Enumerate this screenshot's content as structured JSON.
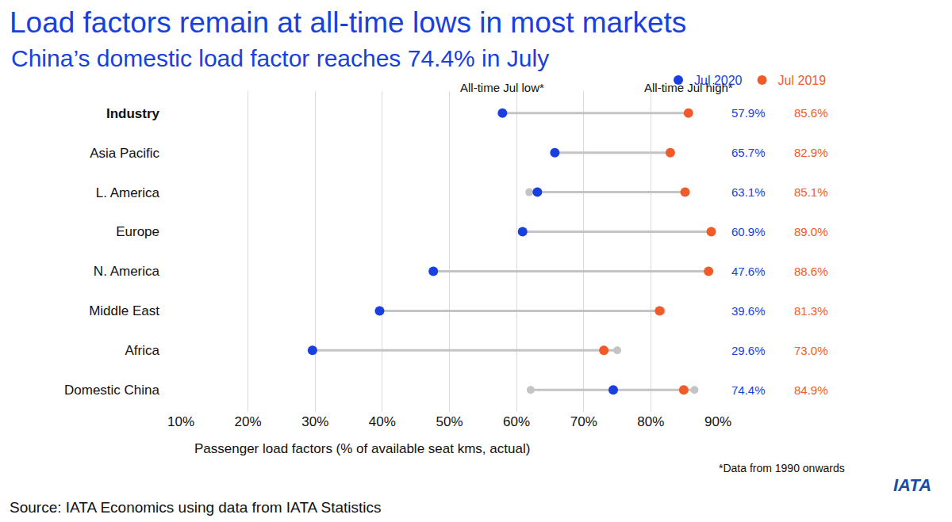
{
  "chart_data": {
    "type": "dumbbell",
    "title": "Load factors remain at all-time lows in most markets",
    "subtitle": "China’s domestic load factor reaches 74.4% in July",
    "orientation": "horizontal",
    "categories": [
      "Industry",
      "Asia Pacific",
      "L. America",
      "Europe",
      "N. America",
      "Middle East",
      "Africa",
      "Domestic China"
    ],
    "series": [
      {
        "name": "Jul 2020",
        "color": "#1a3fe0",
        "values": [
          57.9,
          65.7,
          63.1,
          60.9,
          47.6,
          39.6,
          29.6,
          74.4
        ],
        "value_labels": [
          "57.9%",
          "65.7%",
          "63.1%",
          "60.9%",
          "47.6%",
          "39.6%",
          "29.6%",
          "74.4%"
        ]
      },
      {
        "name": "Jul 2019",
        "color": "#f15a29",
        "values": [
          85.6,
          82.9,
          85.1,
          89.0,
          88.6,
          81.3,
          73.0,
          84.9
        ],
        "value_labels": [
          "85.6%",
          "82.9%",
          "85.1%",
          "89.0%",
          "88.6%",
          "81.3%",
          "73.0%",
          "84.9%"
        ]
      }
    ],
    "all_time_jul_low": {
      "label": "All-time Jul low*",
      "color": "#c4c4c4",
      "values": [
        null,
        null,
        61.9,
        null,
        null,
        null,
        null,
        62.1
      ]
    },
    "all_time_jul_high": {
      "label": "All-time Jul high*",
      "color": "#c4c4c4",
      "values": [
        null,
        null,
        null,
        null,
        null,
        81.6,
        75.0,
        86.5
      ]
    },
    "x_label": "Passenger load factors (% of available seat kms, actual)",
    "xlim": [
      10,
      90
    ],
    "xticks": [
      {
        "value": 10,
        "label": "10%"
      },
      {
        "value": 20,
        "label": "20%"
      },
      {
        "value": 30,
        "label": "30%"
      },
      {
        "value": 40,
        "label": "40%"
      },
      {
        "value": 50,
        "label": "50%"
      },
      {
        "value": 60,
        "label": "60%"
      },
      {
        "value": 70,
        "label": "70%"
      },
      {
        "value": 80,
        "label": "80%"
      },
      {
        "value": 90,
        "label": "90%"
      }
    ],
    "grid": true,
    "data_labels": true,
    "legend": "top right",
    "footnote": "*Data from 1990 onwards",
    "source": "Source: IATA Economics using data from IATA Statistics",
    "logo": "IATA"
  }
}
